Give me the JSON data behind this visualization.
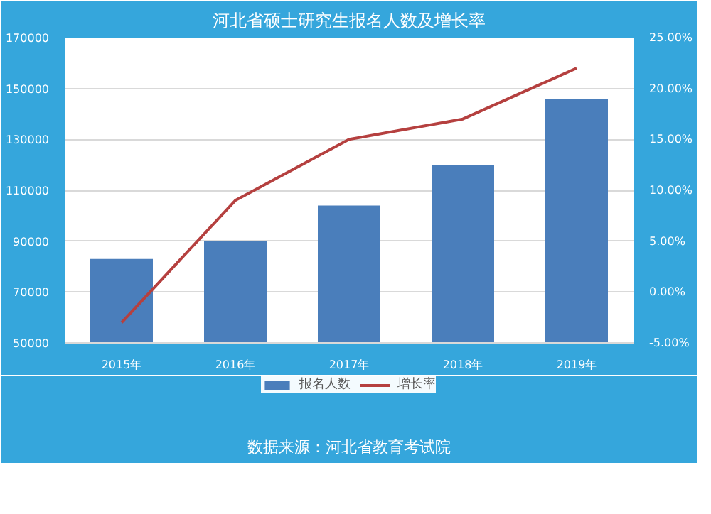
{
  "chart_data": {
    "type": "bar",
    "title": "河北省硕士研究生报名人数及增长率",
    "categories": [
      "2015年",
      "2016年",
      "2017年",
      "2018年",
      "2019年"
    ],
    "series": [
      {
        "name": "报名人数",
        "color": "#4a7ebb",
        "values": [
          83000,
          90000,
          104000,
          120000,
          146000
        ]
      },
      {
        "name": "增长率",
        "type": "line",
        "axis": "y2",
        "color": "#b5403f",
        "values": [
          -3,
          9,
          15,
          17,
          22
        ]
      }
    ],
    "ylim": [
      50000,
      170000
    ],
    "yticks": [
      50000,
      70000,
      90000,
      110000,
      130000,
      150000,
      170000
    ],
    "y2lim": [
      -5,
      25
    ],
    "y2ticks": [
      {
        "value": -5,
        "label": "-5.00%"
      },
      {
        "value": 0,
        "label": "0.00%"
      },
      {
        "value": 5,
        "label": "5.00%"
      },
      {
        "value": 10,
        "label": "10.00%"
      },
      {
        "value": 15,
        "label": "15.00%"
      },
      {
        "value": 20,
        "label": "20.00%"
      },
      {
        "value": 25,
        "label": "25.00%"
      }
    ],
    "grid": "y",
    "legend": "bottom",
    "annotations": [
      "数据来源：河北省教育考试院"
    ]
  }
}
